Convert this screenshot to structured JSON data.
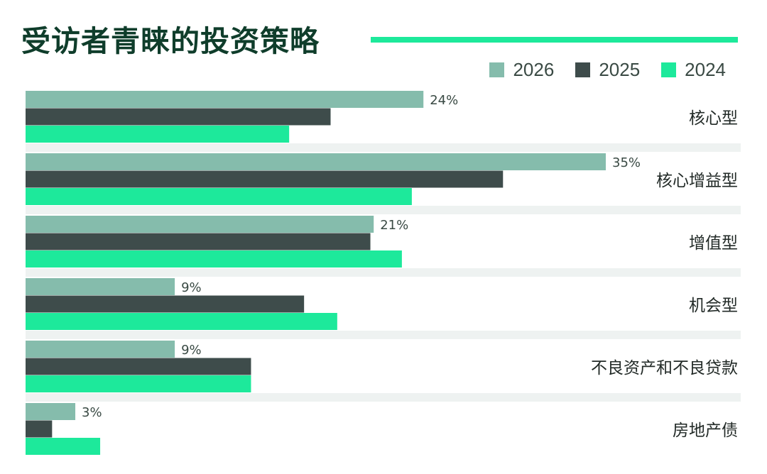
{
  "title": "受访者青睐的投资策略",
  "colors": {
    "title": "#0f3d2b",
    "accent_rule": "#1de99b",
    "series_2026": "#85bcac",
    "series_2025": "#3e4c4b",
    "series_2024": "#1de99b",
    "separator": "#eef2f1",
    "label_text": "#3a4a44"
  },
  "chart_data": {
    "type": "bar",
    "orientation": "horizontal",
    "title": "受访者青睐的投资策略",
    "legend_position": "top-right",
    "categories": [
      "核心型",
      "核心增益型",
      "增值型",
      "机会型",
      "不良资产和不良贷款",
      "房地产债"
    ],
    "series": [
      {
        "name": "2026",
        "color": "#85bcac",
        "values": [
          24,
          35,
          21,
          9,
          9,
          3
        ],
        "labels": [
          "24%",
          "35%",
          "21%",
          "9%",
          "9%",
          "3%"
        ]
      },
      {
        "name": "2025",
        "color": "#3e4c4b",
        "values": [
          18.4,
          28.8,
          20.8,
          16.8,
          13.6,
          1.6
        ]
      },
      {
        "name": "2024",
        "color": "#1de99b",
        "values": [
          15.9,
          23.3,
          22.7,
          18.8,
          13.6,
          4.5
        ]
      }
    ],
    "xlim": [
      0,
      35
    ],
    "grid": false
  }
}
